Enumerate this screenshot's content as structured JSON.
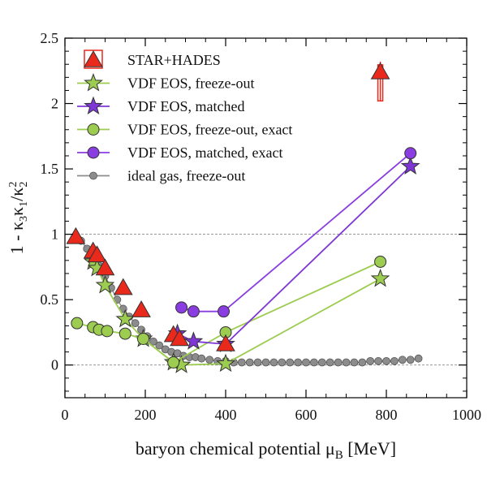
{
  "chart_data": {
    "type": "scatter",
    "xlabel": "baryon chemical potential",
    "xlabel_symbol": "μ",
    "xlabel_sub": "B",
    "xlabel_unit": "[MeV]",
    "ylabel_parts": [
      "1 - κ",
      "3",
      "κ",
      "1",
      "/κ",
      "2",
      "2"
    ],
    "xlim": [
      0,
      1000
    ],
    "ylim": [
      -0.25,
      2.5
    ],
    "xticks": [
      0,
      200,
      400,
      600,
      800,
      1000
    ],
    "yticks": [
      0,
      0.5,
      1,
      1.5,
      2,
      2.5
    ],
    "ytick_labels": [
      "0",
      "0.5",
      "1",
      "1.5",
      "2",
      "2.5"
    ],
    "reference_lines": [
      0,
      1
    ],
    "grid": false,
    "legend_position": "top-left",
    "series": [
      {
        "name": "STAR+HADES",
        "marker": "triangle",
        "color": "#e8291c",
        "line": false,
        "x": [
          27,
          70,
          80,
          100,
          145,
          190,
          270,
          285,
          400
        ],
        "y": [
          0.98,
          0.87,
          0.84,
          0.74,
          0.59,
          0.42,
          0.23,
          0.2,
          0.16
        ]
      },
      {
        "name": "VDF EOS, freeze-out",
        "marker": "star",
        "color": "#9ccc50",
        "line": true,
        "x": [
          70,
          80,
          100,
          150,
          195,
          270,
          290,
          400,
          785
        ],
        "y": [
          0.79,
          0.74,
          0.61,
          0.35,
          0.2,
          0.02,
          0.0,
          0.01,
          0.66
        ]
      },
      {
        "name": "VDF EOS, matched",
        "marker": "star",
        "color": "#7e36d4",
        "line": true,
        "x": [
          280,
          320,
          400,
          860
        ],
        "y": [
          0.24,
          0.18,
          0.16,
          1.52
        ]
      },
      {
        "name": "VDF EOS, freeze-out, exact",
        "marker": "circle",
        "color": "#9ccc50",
        "line": true,
        "x": [
          30,
          70,
          85,
          105,
          150,
          195,
          270,
          400,
          785
        ],
        "y": [
          0.32,
          0.29,
          0.27,
          0.26,
          0.24,
          0.2,
          0.02,
          0.25,
          0.79
        ]
      },
      {
        "name": "VDF EOS, matched, exact",
        "marker": "circle",
        "color": "#8a3de0",
        "line": true,
        "x": [
          290,
          320,
          395,
          860
        ],
        "y": [
          0.44,
          0.41,
          0.41,
          1.62
        ]
      },
      {
        "name": "ideal gas, freeze-out",
        "marker": "small-circle",
        "color": "#8c8c8c",
        "line": true,
        "x": [
          27,
          40,
          55,
          70,
          85,
          100,
          115,
          130,
          145,
          160,
          175,
          190,
          205,
          220,
          235,
          250,
          265,
          280,
          295,
          310,
          325,
          340,
          360,
          380,
          400,
          420,
          440,
          460,
          480,
          500,
          520,
          540,
          560,
          580,
          600,
          620,
          640,
          660,
          680,
          700,
          720,
          740,
          760,
          780,
          800,
          820,
          840,
          860,
          880
        ],
        "y": [
          0.99,
          0.95,
          0.89,
          0.82,
          0.76,
          0.68,
          0.59,
          0.5,
          0.43,
          0.37,
          0.32,
          0.27,
          0.22,
          0.18,
          0.15,
          0.12,
          0.1,
          0.09,
          0.07,
          0.06,
          0.06,
          0.05,
          0.04,
          0.03,
          0.03,
          0.02,
          0.02,
          0.02,
          0.02,
          0.02,
          0.02,
          0.02,
          0.02,
          0.02,
          0.02,
          0.02,
          0.02,
          0.02,
          0.02,
          0.02,
          0.02,
          0.02,
          0.03,
          0.03,
          0.03,
          0.03,
          0.04,
          0.04,
          0.05
        ]
      }
    ],
    "extra_points": [
      {
        "series": "STAR+HADES",
        "x": 785,
        "y": 2.24,
        "yerr_low": 0.22,
        "yerr_high": 0.08,
        "uncertainty_box": true
      }
    ]
  }
}
